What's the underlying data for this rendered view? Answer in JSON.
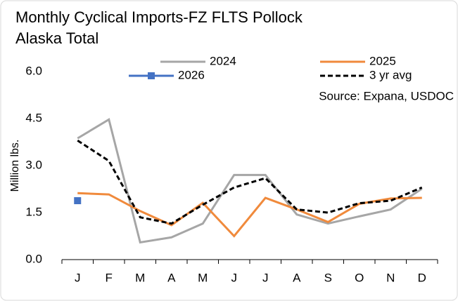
{
  "chart_data": {
    "type": "line",
    "title": [
      "Monthly Cyclical Imports-FZ FLTS Pollock",
      "Alaska Total"
    ],
    "y_label": "Million lbs.",
    "annotation": "Source: Expana, USDOC",
    "categories": [
      "J",
      "F",
      "M",
      "A",
      "M",
      "J",
      "J",
      "A",
      "S",
      "O",
      "N",
      "D"
    ],
    "ylim": [
      0,
      6
    ],
    "yticks": [
      {
        "value": 0,
        "label": "0.0"
      },
      1.5,
      {
        "value": 3,
        "label": "3.0"
      },
      4.5,
      {
        "value": 6,
        "label": "6.0"
      }
    ],
    "grid": false,
    "series": [
      {
        "name": "2024",
        "color": "#a6a6a6",
        "dash": "solid",
        "values": [
          3.87,
          4.47,
          0.55,
          0.71,
          1.15,
          2.7,
          2.7,
          1.44,
          1.15,
          1.38,
          1.6,
          2.26
        ]
      },
      {
        "name": "2025",
        "color": "#f08a3c",
        "dash": "solid",
        "values": [
          2.12,
          2.08,
          1.55,
          1.1,
          1.81,
          0.75,
          1.97,
          1.6,
          1.2,
          1.78,
          1.95,
          1.97
        ]
      },
      {
        "name": "2026",
        "color": "#4472c4",
        "dash": "solid",
        "marker": "square",
        "values": [
          1.88,
          null,
          null,
          null,
          null,
          null,
          null,
          null,
          null,
          null,
          null,
          null
        ]
      },
      {
        "name": "3 yr avg",
        "color": "#000000",
        "dash": "dashed",
        "values": [
          3.8,
          3.15,
          1.35,
          1.15,
          1.75,
          2.3,
          2.6,
          1.6,
          1.5,
          1.8,
          1.88,
          2.3
        ]
      }
    ]
  }
}
